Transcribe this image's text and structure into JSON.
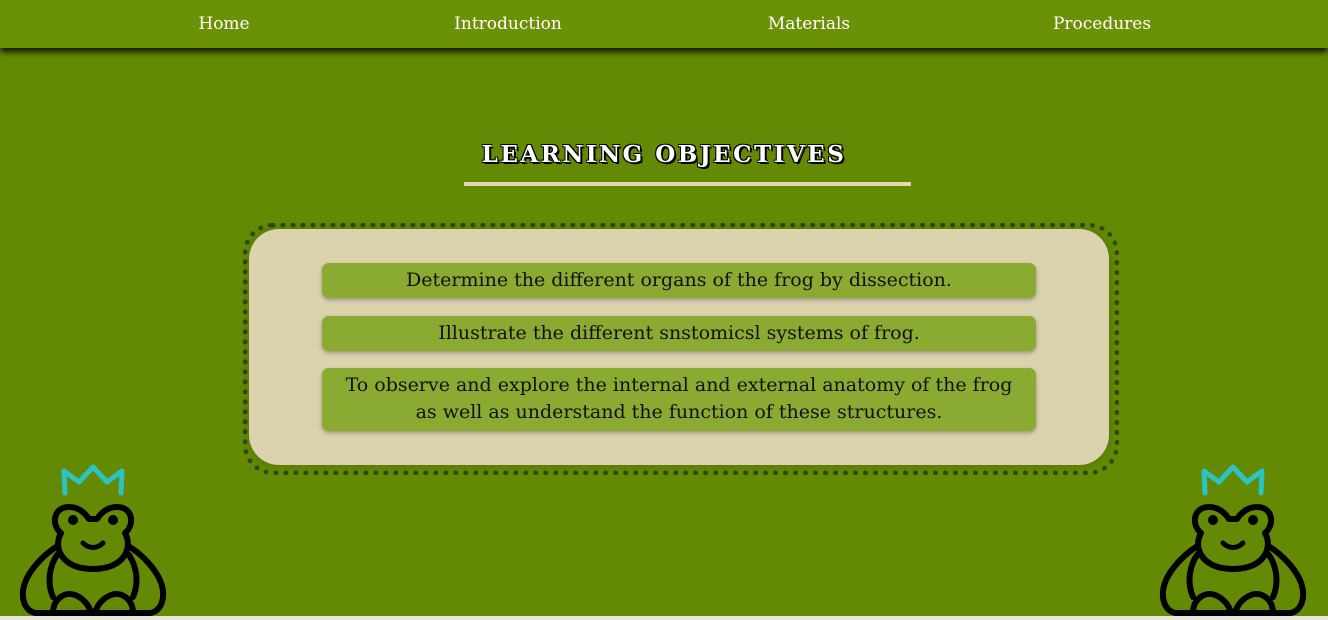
{
  "nav": {
    "items": [
      {
        "label": "Home"
      },
      {
        "label": "Introduction"
      },
      {
        "label": "Materials"
      },
      {
        "label": "Procedures"
      }
    ]
  },
  "section": {
    "title": "LEARNING OBJECTIVES",
    "objectives": [
      {
        "text": "Determine the different organs of the frog by dissection."
      },
      {
        "text": "Illustrate the different snstomicsl systems of frog."
      },
      {
        "text": "To observe and explore the internal and external anatomy of the frog as well as understand the function of these structures."
      }
    ]
  },
  "decorations": {
    "left": "frog-prince-icon",
    "right": "frog-prince-icon"
  },
  "colors": {
    "background": "#648a05",
    "navbar": "#6b9106",
    "card": "#dbd2ae",
    "objective_box": "#8aaa31",
    "crown": "#2bc4c4"
  }
}
